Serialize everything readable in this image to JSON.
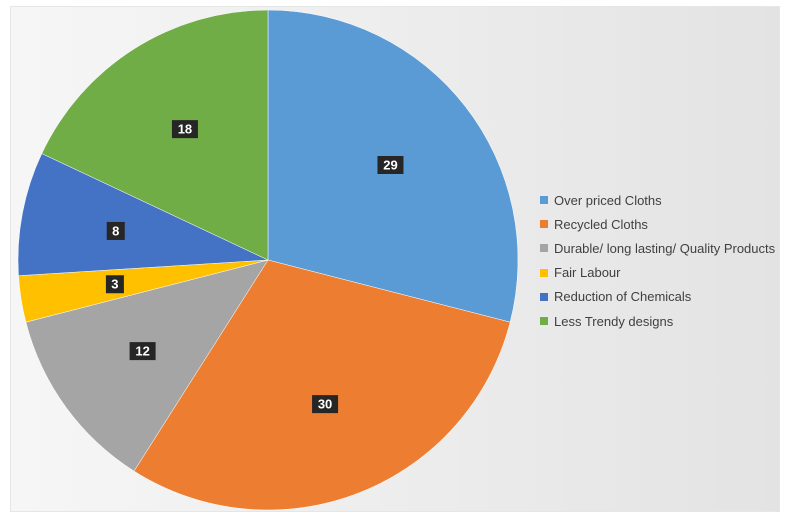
{
  "chart_data": {
    "type": "pie",
    "title": "",
    "labels": [
      "Over priced Cloths",
      "Recycled Cloths",
      "Durable/ long lasting/ Quality Products",
      "Fair Labour",
      "Reduction of Chemicals",
      "Less Trendy designs"
    ],
    "values": [
      29,
      30,
      12,
      3,
      8,
      18
    ],
    "colors": [
      "#5b9bd5",
      "#ed7d31",
      "#a5a5a5",
      "#ffc000",
      "#4472c4",
      "#70ad47"
    ],
    "legend_position": "right",
    "data_labels": true
  }
}
